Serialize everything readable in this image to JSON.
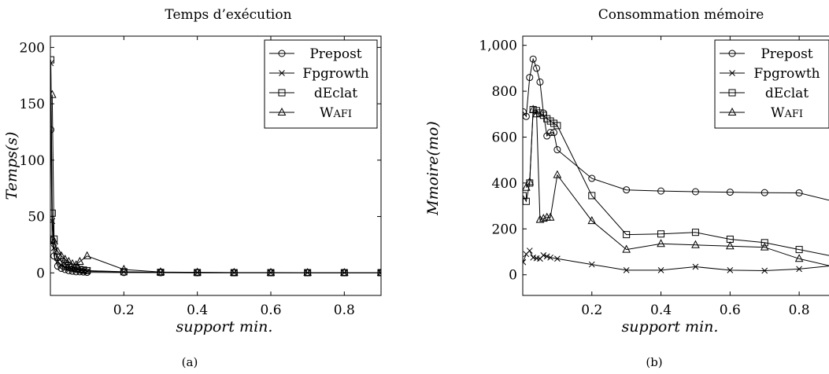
{
  "captions": [
    "(a)",
    "(b)"
  ],
  "chart_data": [
    {
      "type": "line",
      "title": "Temps d’exécution",
      "xlabel": "support min.",
      "ylabel": "Temps(s)",
      "xlim": [
        0,
        0.9
      ],
      "ylim": [
        -20,
        210
      ],
      "xticks": [
        0.2,
        0.4,
        0.6,
        0.8
      ],
      "xtick_labels": [
        "0.2",
        "0.4",
        "0.6",
        "0.8"
      ],
      "yticks": [
        0,
        50,
        100,
        150,
        200
      ],
      "ytick_labels": [
        "0",
        "50",
        "100",
        "150",
        "200"
      ],
      "legend_position": "top-right",
      "series": [
        {
          "name": "Prepost",
          "marker": "circle",
          "x": [
            0.001,
            0.005,
            0.01,
            0.02,
            0.03,
            0.04,
            0.05,
            0.06,
            0.07,
            0.08,
            0.09,
            0.1,
            0.2,
            0.3,
            0.4,
            0.5,
            0.6,
            0.7,
            0.8,
            0.9
          ],
          "y": [
            127,
            29,
            15,
            6,
            4,
            3,
            2,
            1.5,
            1,
            1,
            0.8,
            0.5,
            0.3,
            0.2,
            0.1,
            0.1,
            0.1,
            0.1,
            0.1,
            0.1
          ]
        },
        {
          "name": "Fpgrowth",
          "marker": "cross",
          "x": [
            0.001,
            0.005,
            0.01,
            0.02,
            0.03,
            0.04,
            0.05,
            0.06,
            0.07,
            0.08,
            0.09,
            0.1,
            0.2,
            0.3,
            0.4,
            0.5,
            0.6,
            0.7,
            0.8,
            0.9
          ],
          "y": [
            186,
            46,
            22,
            10,
            7,
            5,
            4,
            3,
            2.5,
            2,
            1.8,
            1.5,
            0.8,
            0.5,
            0.3,
            0.2,
            0.2,
            0.1,
            0.1,
            0.1
          ]
        },
        {
          "name": "dEclat",
          "marker": "square",
          "x": [
            0.001,
            0.005,
            0.01,
            0.02,
            0.03,
            0.04,
            0.05,
            0.06,
            0.07,
            0.08,
            0.09,
            0.1,
            0.2,
            0.3,
            0.4,
            0.5,
            0.6,
            0.7,
            0.8,
            0.9
          ],
          "y": [
            189,
            53,
            30,
            14,
            10,
            8,
            6,
            5,
            4,
            3,
            2.5,
            2,
            1,
            0.5,
            0.3,
            0.2,
            0.2,
            0.2,
            0.2,
            0.2
          ]
        },
        {
          "name": "Wafi",
          "marker": "triangle",
          "x": [
            0.005,
            0.01,
            0.02,
            0.03,
            0.04,
            0.05,
            0.06,
            0.07,
            0.08,
            0.1,
            0.2,
            0.3,
            0.4,
            0.5,
            0.6,
            0.7,
            0.8,
            0.9
          ],
          "y": [
            158,
            28,
            19,
            15,
            12,
            10,
            8,
            7,
            10,
            15,
            3,
            0.8,
            0.5,
            0.3,
            0.3,
            0.2,
            0.2,
            0.2
          ]
        }
      ]
    },
    {
      "type": "line",
      "title": "Consommation mémoire",
      "xlabel": "support min.",
      "ylabel": "Mmoire(mo)",
      "xlim": [
        0,
        0.9
      ],
      "ylim": [
        -90,
        1040
      ],
      "xticks": [
        0.2,
        0.4,
        0.6,
        0.8
      ],
      "xtick_labels": [
        "0.2",
        "0.4",
        "0.6",
        "0.8"
      ],
      "yticks": [
        0,
        200,
        400,
        600,
        800,
        1000
      ],
      "ytick_labels": [
        "0",
        "200",
        "400",
        "600",
        "800",
        "1,000"
      ],
      "legend_position": "top-right",
      "series": [
        {
          "name": "Prepost",
          "marker": "circle",
          "x": [
            0.001,
            0.01,
            0.02,
            0.03,
            0.04,
            0.05,
            0.06,
            0.07,
            0.08,
            0.09,
            0.1,
            0.2,
            0.3,
            0.4,
            0.5,
            0.6,
            0.7,
            0.8,
            0.9
          ],
          "y": [
            710,
            690,
            860,
            940,
            900,
            840,
            705,
            605,
            620,
            620,
            545,
            420,
            370,
            365,
            362,
            360,
            358,
            357,
            320
          ]
        },
        {
          "name": "Fpgrowth",
          "marker": "cross",
          "x": [
            0.001,
            0.01,
            0.02,
            0.03,
            0.04,
            0.05,
            0.06,
            0.07,
            0.08,
            0.1,
            0.2,
            0.3,
            0.4,
            0.5,
            0.6,
            0.7,
            0.8,
            0.9
          ],
          "y": [
            55,
            90,
            105,
            75,
            72,
            70,
            85,
            80,
            75,
            70,
            45,
            20,
            20,
            35,
            20,
            18,
            25,
            40
          ]
        },
        {
          "name": "dEclat",
          "marker": "square",
          "x": [
            0.001,
            0.01,
            0.02,
            0.03,
            0.04,
            0.05,
            0.06,
            0.07,
            0.08,
            0.09,
            0.1,
            0.2,
            0.3,
            0.4,
            0.5,
            0.6,
            0.7,
            0.8,
            0.9
          ],
          "y": [
            345,
            320,
            400,
            720,
            715,
            705,
            695,
            680,
            670,
            660,
            650,
            345,
            175,
            178,
            185,
            155,
            140,
            110,
            80
          ]
        },
        {
          "name": "Wafi",
          "marker": "triangle",
          "x": [
            0.01,
            0.02,
            0.03,
            0.04,
            0.05,
            0.06,
            0.07,
            0.08,
            0.1,
            0.2,
            0.3,
            0.4,
            0.5,
            0.6,
            0.7,
            0.8,
            0.9
          ],
          "y": [
            380,
            405,
            720,
            700,
            240,
            245,
            250,
            250,
            435,
            235,
            110,
            135,
            130,
            125,
            120,
            70,
            35
          ]
        }
      ]
    }
  ]
}
